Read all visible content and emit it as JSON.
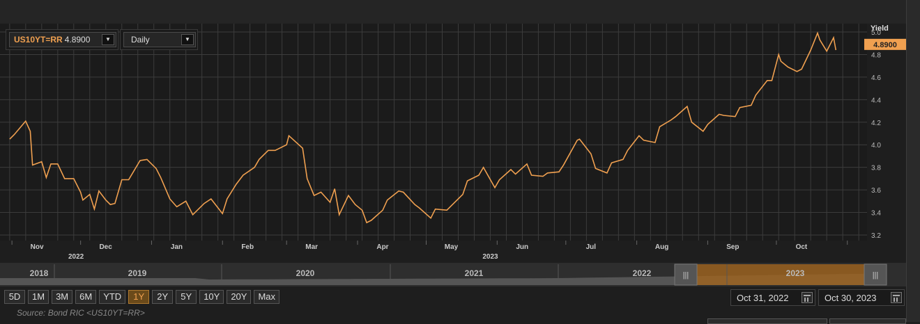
{
  "instrument": {
    "ric": "US10YT=RR",
    "value": "4.8900"
  },
  "frequency": {
    "selected": "Daily"
  },
  "chart_data": {
    "type": "line",
    "ylabel": "Yield",
    "ylim": [
      3.2,
      5.0
    ],
    "yticks": [
      3.2,
      3.4,
      3.6,
      3.8,
      4.0,
      4.2,
      4.4,
      4.6,
      4.8,
      5.0
    ],
    "month_labels": [
      "Nov",
      "Dec",
      "Jan",
      "Feb",
      "Mar",
      "Apr",
      "May",
      "Jun",
      "Jul",
      "Aug",
      "Sep",
      "Oct"
    ],
    "year_labels": [
      {
        "label": "2022",
        "month": "Nov"
      },
      {
        "label": "2023",
        "month": "May"
      }
    ],
    "last_value_label": "4.8900",
    "color": "#f0a050",
    "series": [
      {
        "x": [
          "2022-10-31",
          "2022-11-02",
          "2022-11-07",
          "2022-11-09",
          "2022-11-10",
          "2022-11-14",
          "2022-11-16",
          "2022-11-18",
          "2022-11-21",
          "2022-11-24",
          "2022-11-28",
          "2022-12-01",
          "2022-12-02",
          "2022-12-05",
          "2022-12-07",
          "2022-12-09",
          "2022-12-12",
          "2022-12-14",
          "2022-12-16",
          "2022-12-19",
          "2022-12-22",
          "2022-12-27",
          "2022-12-30",
          "2023-01-03",
          "2023-01-05",
          "2023-01-09",
          "2023-01-12",
          "2023-01-16",
          "2023-01-19",
          "2023-01-24",
          "2023-01-27",
          "2023-02-01",
          "2023-02-03",
          "2023-02-07",
          "2023-02-10",
          "2023-02-15",
          "2023-02-17",
          "2023-02-21",
          "2023-02-24",
          "2023-03-01",
          "2023-03-02",
          "2023-03-08",
          "2023-03-10",
          "2023-03-13",
          "2023-03-16",
          "2023-03-20",
          "2023-03-22",
          "2023-03-24",
          "2023-03-28",
          "2023-03-31",
          "2023-04-03",
          "2023-04-05",
          "2023-04-07",
          "2023-04-12",
          "2023-04-14",
          "2023-04-19",
          "2023-04-21",
          "2023-04-26",
          "2023-04-28",
          "2023-05-03",
          "2023-05-05",
          "2023-05-10",
          "2023-05-12",
          "2023-05-17",
          "2023-05-19",
          "2023-05-24",
          "2023-05-26",
          "2023-05-31",
          "2023-06-02",
          "2023-06-07",
          "2023-06-09",
          "2023-06-14",
          "2023-06-16",
          "2023-06-21",
          "2023-06-23",
          "2023-06-28",
          "2023-06-30",
          "2023-07-06",
          "2023-07-07",
          "2023-07-12",
          "2023-07-14",
          "2023-07-19",
          "2023-07-21",
          "2023-07-26",
          "2023-07-28",
          "2023-08-02",
          "2023-08-04",
          "2023-08-09",
          "2023-08-11",
          "2023-08-16",
          "2023-08-18",
          "2023-08-23",
          "2023-08-25",
          "2023-08-30",
          "2023-09-01",
          "2023-09-06",
          "2023-09-08",
          "2023-09-13",
          "2023-09-15",
          "2023-09-20",
          "2023-09-22",
          "2023-09-27",
          "2023-09-29",
          "2023-10-02",
          "2023-10-03",
          "2023-10-06",
          "2023-10-10",
          "2023-10-12",
          "2023-10-16",
          "2023-10-19",
          "2023-10-20",
          "2023-10-23",
          "2023-10-26",
          "2023-10-27"
        ],
        "y": [
          4.05,
          4.09,
          4.21,
          4.12,
          3.82,
          3.85,
          3.71,
          3.83,
          3.83,
          3.7,
          3.7,
          3.58,
          3.51,
          3.56,
          3.43,
          3.59,
          3.51,
          3.47,
          3.48,
          3.69,
          3.69,
          3.86,
          3.87,
          3.79,
          3.71,
          3.52,
          3.45,
          3.5,
          3.38,
          3.48,
          3.52,
          3.39,
          3.52,
          3.65,
          3.73,
          3.8,
          3.87,
          3.95,
          3.95,
          4.0,
          4.08,
          3.97,
          3.7,
          3.55,
          3.58,
          3.49,
          3.61,
          3.38,
          3.55,
          3.47,
          3.42,
          3.31,
          3.33,
          3.42,
          3.51,
          3.59,
          3.58,
          3.47,
          3.44,
          3.35,
          3.43,
          3.42,
          3.46,
          3.56,
          3.68,
          3.73,
          3.8,
          3.62,
          3.69,
          3.78,
          3.74,
          3.83,
          3.73,
          3.72,
          3.75,
          3.76,
          3.82,
          4.04,
          4.05,
          3.92,
          3.79,
          3.75,
          3.84,
          3.87,
          3.95,
          4.08,
          4.04,
          4.02,
          4.16,
          4.22,
          4.25,
          4.34,
          4.2,
          4.12,
          4.18,
          4.27,
          4.26,
          4.25,
          4.33,
          4.35,
          4.44,
          4.57,
          4.57,
          4.8,
          4.74,
          4.69,
          4.65,
          4.67,
          4.84,
          4.99,
          4.93,
          4.83,
          4.95,
          4.84
        ],
        "last_value": 4.89
      }
    ]
  },
  "navigator": {
    "years": [
      "2018",
      "2019",
      "2020",
      "2021",
      "2022",
      "2023"
    ]
  },
  "periods": [
    "5D",
    "1M",
    "3M",
    "6M",
    "YTD",
    "1Y",
    "2Y",
    "5Y",
    "10Y",
    "20Y",
    "Max"
  ],
  "active_period": "1Y",
  "date_range": {
    "start": "Oct 31, 2022",
    "end": "Oct 30, 2023"
  },
  "source": "Source: Bond RIC <US10YT=RR>"
}
